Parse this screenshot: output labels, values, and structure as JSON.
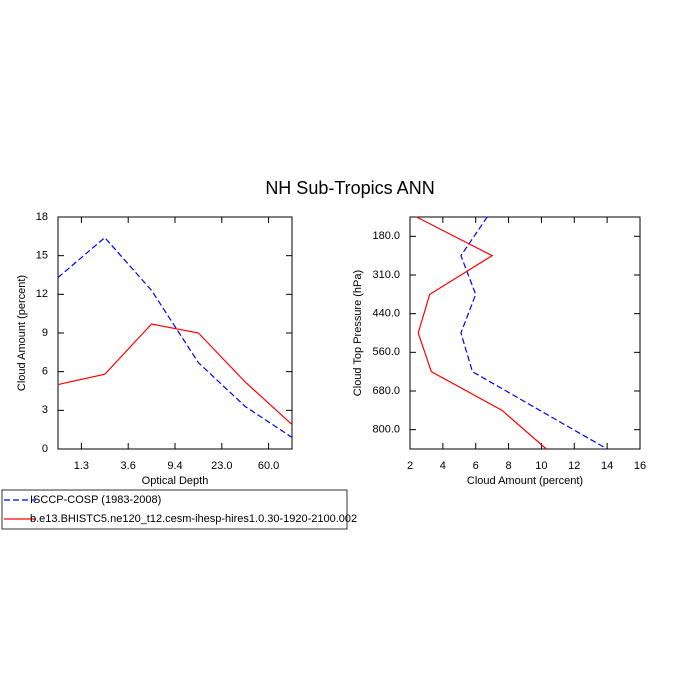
{
  "title": "NH Sub-Tropics ANN",
  "chart_data": [
    {
      "type": "line",
      "x": [
        0,
        1,
        2,
        3,
        4,
        5
      ],
      "xlim": [
        0,
        5
      ],
      "xticks": [
        {
          "value": 0.5,
          "label": "1.3"
        },
        {
          "value": 1.5,
          "label": "3.6"
        },
        {
          "value": 2.5,
          "label": "9.4"
        },
        {
          "value": 3.5,
          "label": "23.0"
        },
        {
          "value": 4.5,
          "label": "60.0"
        }
      ],
      "xlabel": "Optical Depth",
      "ylabel": "Cloud Amount (percent)",
      "ylim": [
        0,
        18
      ],
      "yticks": [
        0,
        3,
        6,
        9,
        12,
        15,
        18
      ],
      "series": [
        {
          "name": "ISCCP-COSP (1983-2008)",
          "color": "#0000ff",
          "dash": true,
          "values": [
            13.3,
            16.4,
            12.3,
            6.7,
            3.3,
            0.9
          ]
        },
        {
          "name": "b.e13.BHISTC5.ne120_t12.cesm-ihesp-hires1.0.30-1920-2100.002",
          "color": "#ff0000",
          "dash": false,
          "values": [
            5.0,
            5.8,
            9.7,
            9.0,
            5.2,
            1.9
          ]
        }
      ]
    },
    {
      "type": "line",
      "orientation": "horizontal",
      "y": [
        0,
        1,
        2,
        3,
        4,
        5,
        6
      ],
      "ylim": [
        0,
        6
      ],
      "y_inverted": true,
      "yticks": [
        {
          "value": 0.5,
          "label": "180.0"
        },
        {
          "value": 1.5,
          "label": "310.0"
        },
        {
          "value": 2.5,
          "label": "440.0"
        },
        {
          "value": 3.5,
          "label": "560.0"
        },
        {
          "value": 4.5,
          "label": "680.0"
        },
        {
          "value": 5.5,
          "label": "800.0"
        }
      ],
      "ylabel": "Cloud Top Pressure (hPa)",
      "xlabel": "Cloud Amount (percent)",
      "xlim": [
        2,
        16
      ],
      "xticks": [
        2,
        4,
        6,
        8,
        10,
        12,
        14,
        16
      ],
      "series": [
        {
          "color": "#0000ff",
          "dash": true,
          "values": [
            6.7,
            5.1,
            6.0,
            5.1,
            5.8,
            9.9,
            14.0
          ]
        },
        {
          "color": "#ff0000",
          "dash": false,
          "values": [
            2.4,
            7.0,
            3.2,
            2.5,
            3.3,
            7.6,
            10.3
          ]
        }
      ]
    }
  ]
}
